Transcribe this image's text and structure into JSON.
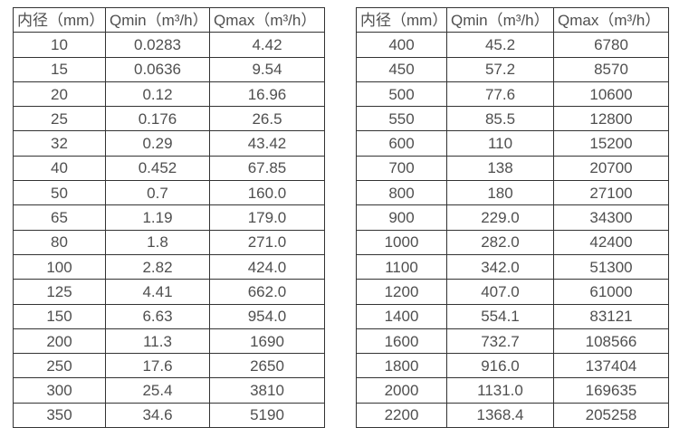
{
  "page": {
    "background": "#ffffff"
  },
  "colors": {
    "text": "#4f4f4f",
    "border": "#333333"
  },
  "tables": [
    {
      "name": "flow-range-table-small-diameters",
      "headers": [
        "内径（mm）",
        "Qmin（m³/h）",
        "Qmax（m³/h）"
      ],
      "rows": [
        [
          "10",
          "0.0283",
          "4.42"
        ],
        [
          "15",
          "0.0636",
          "9.54"
        ],
        [
          "20",
          "0.12",
          "16.96"
        ],
        [
          "25",
          "0.176",
          "26.5"
        ],
        [
          "32",
          "0.29",
          "43.42"
        ],
        [
          "40",
          "0.452",
          "67.85"
        ],
        [
          "50",
          "0.7",
          "160.0"
        ],
        [
          "65",
          "1.19",
          "179.0"
        ],
        [
          "80",
          "1.8",
          "271.0"
        ],
        [
          "100",
          "2.82",
          "424.0"
        ],
        [
          "125",
          "4.41",
          "662.0"
        ],
        [
          "150",
          "6.63",
          "954.0"
        ],
        [
          "200",
          "11.3",
          "1690"
        ],
        [
          "250",
          "17.6",
          "2650"
        ],
        [
          "300",
          "25.4",
          "3810"
        ],
        [
          "350",
          "34.6",
          "5190"
        ]
      ]
    },
    {
      "name": "flow-range-table-large-diameters",
      "headers": [
        "内径（mm）",
        "Qmin（m³/h）",
        "Qmax（m³/h）"
      ],
      "rows": [
        [
          "400",
          "45.2",
          "6780"
        ],
        [
          "450",
          "57.2",
          "8570"
        ],
        [
          "500",
          "77.6",
          "10600"
        ],
        [
          "550",
          "85.5",
          "12800"
        ],
        [
          "600",
          "110",
          "15200"
        ],
        [
          "700",
          "138",
          "20700"
        ],
        [
          "800",
          "180",
          "27100"
        ],
        [
          "900",
          "229.0",
          "34300"
        ],
        [
          "1000",
          "282.0",
          "42400"
        ],
        [
          "1100",
          "342.0",
          "51300"
        ],
        [
          "1200",
          "407.0",
          "61000"
        ],
        [
          "1400",
          "554.1",
          "83121"
        ],
        [
          "1600",
          "732.7",
          "108566"
        ],
        [
          "1800",
          "916.0",
          "137404"
        ],
        [
          "2000",
          "1131.0",
          "169635"
        ],
        [
          "2200",
          "1368.4",
          "205258"
        ]
      ]
    }
  ]
}
